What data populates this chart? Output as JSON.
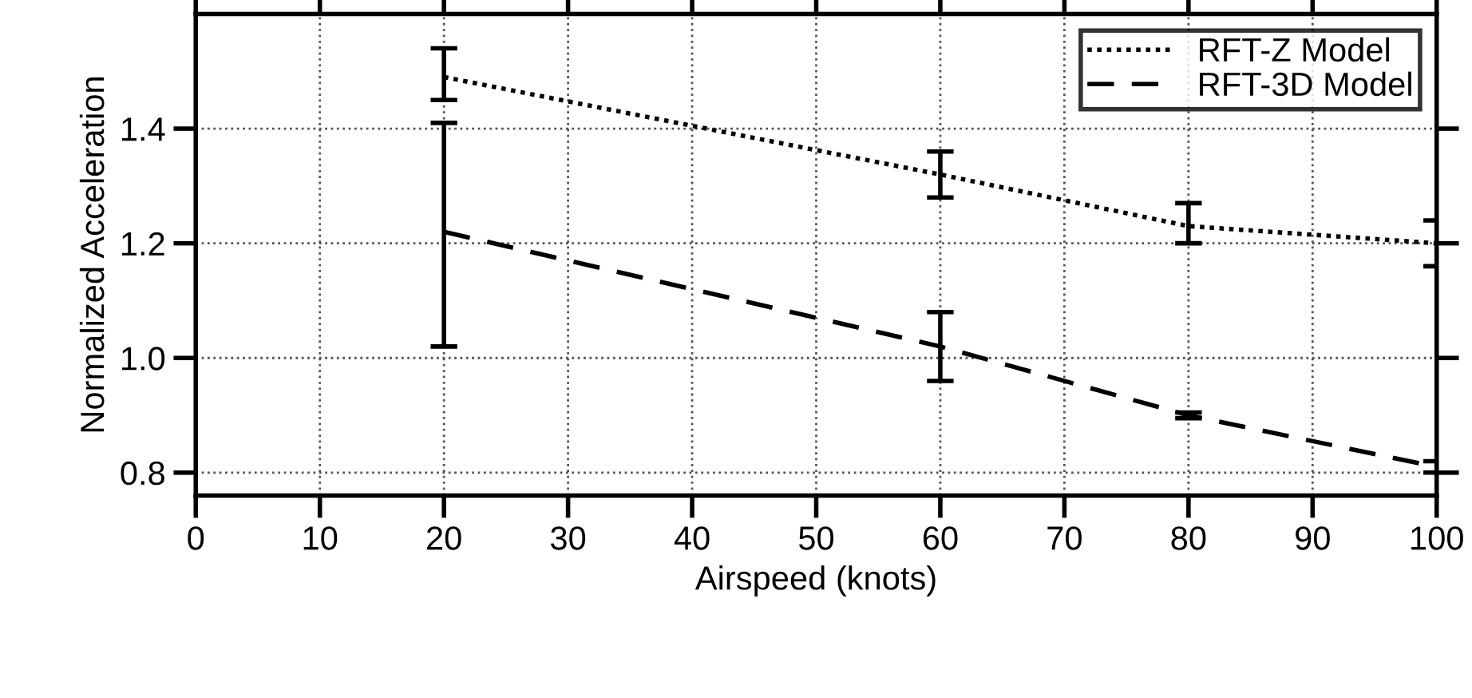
{
  "chart_data": {
    "type": "line",
    "xlabel": "Airspeed (knots)",
    "ylabel": "Normalized Acceleration",
    "x": [
      20,
      60,
      80,
      100
    ],
    "series": [
      {
        "name": "RFT-Z Model",
        "color": "#000000",
        "line_style": "dotted",
        "values": [
          1.49,
          1.32,
          1.23,
          1.2
        ],
        "errors": [
          [
            1.45,
            1.54
          ],
          [
            1.28,
            1.36
          ],
          [
            1.2,
            1.27
          ],
          [
            1.16,
            1.24
          ]
        ]
      },
      {
        "name": "RFT-3D Model",
        "color": "#000000",
        "line_style": "dashed",
        "values": [
          1.22,
          1.02,
          0.9,
          0.81
        ],
        "errors": [
          [
            1.02,
            1.41
          ],
          [
            0.96,
            1.08
          ],
          [
            0.895,
            0.905
          ],
          [
            0.8,
            0.82
          ]
        ]
      }
    ],
    "xlim": [
      0,
      100
    ],
    "xticks": [
      0,
      10,
      20,
      30,
      40,
      50,
      60,
      70,
      80,
      90,
      100
    ],
    "ylim": [
      0.76,
      1.6
    ],
    "yticks": [
      0.8,
      {
        "value": 1.0,
        "label": "1.0"
      },
      1.2,
      1.4
    ],
    "grid": true,
    "legend": "top right",
    "marker": "none"
  }
}
